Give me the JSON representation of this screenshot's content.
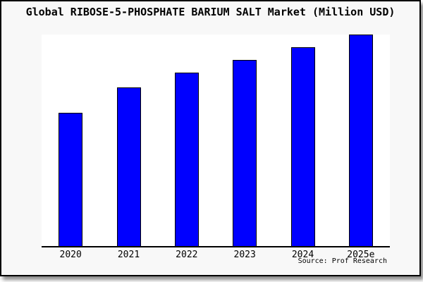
{
  "page": {
    "background_color": "#f8f8f8",
    "border_color": "#000000"
  },
  "title": "Global RIBOSE-5-PHOSPHATE BARIUM SALT Market (Million USD)",
  "source_note": "Source: Prof Research",
  "chart_data": {
    "type": "bar",
    "title": "Global RIBOSE-5-PHOSPHATE BARIUM SALT Market (Million USD)",
    "categories": [
      "2020",
      "2021",
      "2022",
      "2023",
      "2024",
      "2025e"
    ],
    "values": [
      63,
      75,
      82,
      88,
      94,
      100
    ],
    "unit": "relative index (no y-axis scale shown; tallest bar 2025e = 100)",
    "xlabel": "",
    "ylabel": "",
    "grid": false,
    "legend": false,
    "plot_background": "#ffffff",
    "bar_color": "#0000ff",
    "bar_border_color": "#000000",
    "axis_color": "#000000",
    "source_note": "Source: Prof Research"
  }
}
